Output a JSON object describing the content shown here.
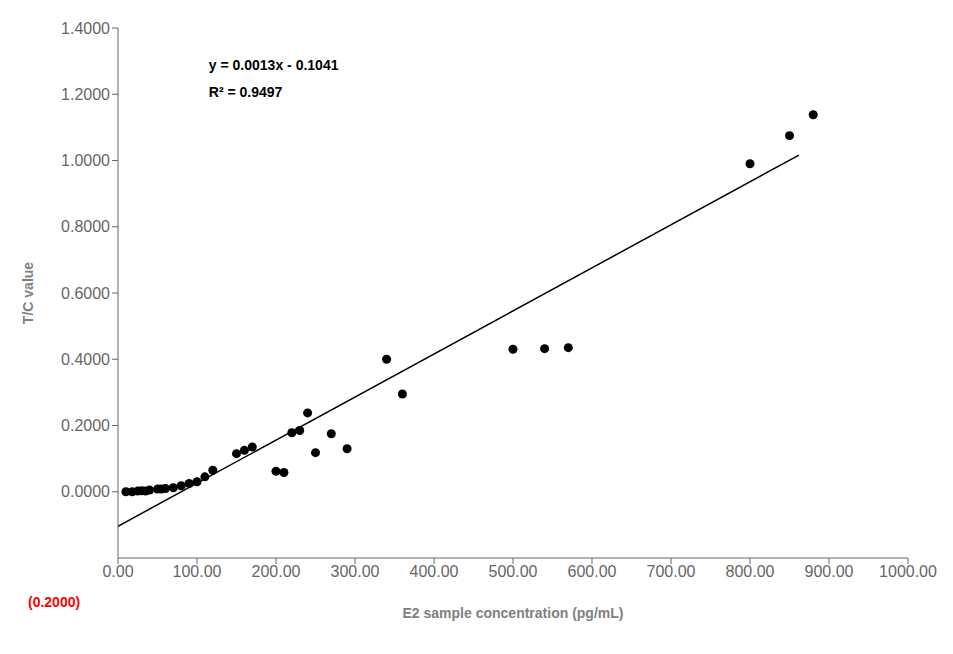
{
  "chart_data": {
    "type": "scatter",
    "xlabel": "E2 sample concentration (pg/mL)",
    "ylabel": "T/C value",
    "x": [
      10,
      18,
      25,
      30,
      35,
      40,
      50,
      55,
      60,
      70,
      80,
      90,
      100,
      110,
      120,
      150,
      160,
      170,
      200,
      210,
      220,
      230,
      240,
      250,
      270,
      290,
      340,
      360,
      500,
      540,
      570,
      800,
      850,
      880
    ],
    "series": [
      {
        "type": "scatter",
        "color": "#000000",
        "marker": "circle",
        "values": [
          0.0,
          0.0,
          0.002,
          0.003,
          0.002,
          0.005,
          0.008,
          0.008,
          0.01,
          0.012,
          0.018,
          0.025,
          0.03,
          0.045,
          0.065,
          0.115,
          0.125,
          0.135,
          0.062,
          0.058,
          0.178,
          0.185,
          0.238,
          0.118,
          0.175,
          0.13,
          0.4,
          0.295,
          0.43,
          0.432,
          0.435,
          0.99,
          1.075,
          1.138
        ]
      },
      {
        "type": "line",
        "color": "#000000",
        "line_style": "solid",
        "x": [
          0,
          862
        ],
        "values": [
          -0.1041,
          1.0165
        ]
      }
    ],
    "xlim": [
      0,
      1000
    ],
    "ylim": [
      -0.2,
      1.4
    ],
    "xticks": [
      {
        "value": 0,
        "label": "0.00"
      },
      {
        "value": 100,
        "label": "100.00"
      },
      {
        "value": 200,
        "label": "200.00"
      },
      {
        "value": 300,
        "label": "300.00"
      },
      {
        "value": 400,
        "label": "400.00"
      },
      {
        "value": 500,
        "label": "500.00"
      },
      {
        "value": 600,
        "label": "600.00"
      },
      {
        "value": 700,
        "label": "700.00"
      },
      {
        "value": 800,
        "label": "800.00"
      },
      {
        "value": 900,
        "label": "900.00"
      },
      {
        "value": 1000,
        "label": "1000.00"
      }
    ],
    "yticks": [
      {
        "value": 0.0,
        "label": "0.0000"
      },
      {
        "value": 0.2,
        "label": "0.2000"
      },
      {
        "value": 0.4,
        "label": "0.4000"
      },
      {
        "value": 0.6,
        "label": "0.6000"
      },
      {
        "value": 0.8,
        "label": "0.8000"
      },
      {
        "value": 1.0,
        "label": "1.0000"
      },
      {
        "value": 1.2,
        "label": "1.2000"
      },
      {
        "value": 1.4,
        "label": "1.4000"
      }
    ],
    "grid": false,
    "legend": false,
    "annotations": [
      {
        "text": "y = 0.0013x - 0.1041"
      },
      {
        "text": "R² = 0.9497"
      },
      {
        "text": "(0.2000)",
        "color": "#ff0000"
      }
    ]
  }
}
